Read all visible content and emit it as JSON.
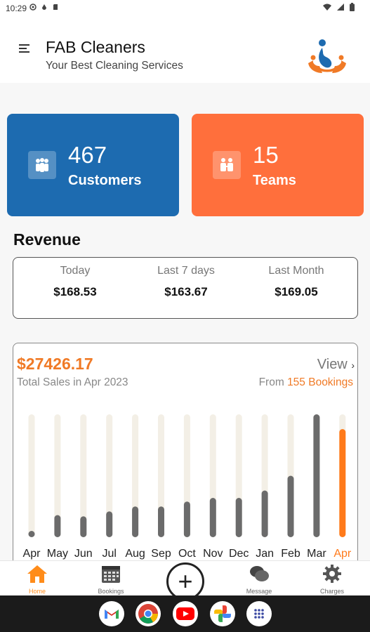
{
  "status_bar": {
    "time": "10:29"
  },
  "header": {
    "title": "FAB Cleaners",
    "subtitle": "Your Best Cleaning Services"
  },
  "stats": {
    "customers": {
      "value": "467",
      "label": "Customers"
    },
    "teams": {
      "value": "15",
      "label": "Teams"
    }
  },
  "revenue": {
    "heading": "Revenue",
    "items": [
      {
        "label": "Today",
        "value": "$168.53"
      },
      {
        "label": "Last 7 days",
        "value": "$163.67"
      },
      {
        "label": "Last Month",
        "value": "$169.05"
      }
    ]
  },
  "sales": {
    "total": "$27426.17",
    "caption": "Total Sales in Apr 2023",
    "view_label": "View",
    "from_prefix": "From",
    "bookings_text": "155 Bookings"
  },
  "chart_data": {
    "type": "bar",
    "categories": [
      "Apr",
      "May",
      "Jun",
      "Jul",
      "Aug",
      "Sep",
      "Oct",
      "Nov",
      "Dec",
      "Jan",
      "Feb",
      "Mar",
      "Apr"
    ],
    "values": [
      0.05,
      0.18,
      0.17,
      0.21,
      0.25,
      0.25,
      0.29,
      0.32,
      0.32,
      0.38,
      0.5,
      1.0,
      0.88
    ],
    "highlight_index": 12,
    "title": "",
    "xlabel": "",
    "ylabel": "",
    "ylim": [
      0,
      1
    ],
    "colors": {
      "track": "#f3efe6",
      "bar": "#6b6b6b",
      "highlight": "#ff7a1a",
      "label": "#222222",
      "highlight_label": "#ff7a1a"
    }
  },
  "bottom_nav": {
    "items": [
      {
        "label": "Home",
        "icon": "home-icon",
        "active": true
      },
      {
        "label": "Bookings",
        "icon": "calendar-icon",
        "active": false
      },
      {
        "label": "Message",
        "icon": "chat-icon",
        "active": false
      },
      {
        "label": "Charges",
        "icon": "gear-icon",
        "active": false
      }
    ],
    "fab_symbol": "+"
  },
  "dock": {
    "apps": [
      "gmail-icon",
      "chrome-icon",
      "youtube-icon",
      "photos-icon",
      "app-drawer-icon"
    ]
  },
  "colors": {
    "primary_blue": "#1d6bb0",
    "accent_orange": "#ff6f3c",
    "text_orange": "#f07a26"
  }
}
